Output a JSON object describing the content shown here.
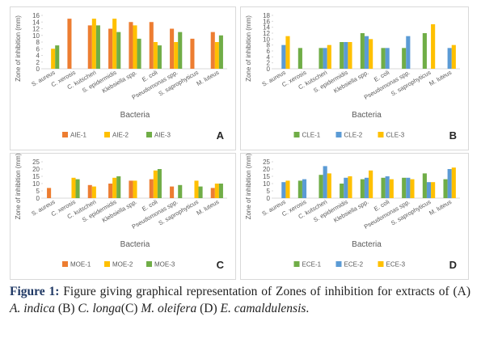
{
  "chart_data": [
    {
      "type": "bar",
      "panel": "A",
      "x_label": "Bacteria",
      "y_label": "Zone of inhibition (mm)",
      "categories": [
        "S. aureus",
        "C. xerosis",
        "C. kutscheri",
        "S. epidermidis",
        "Klebsiella spp.",
        "E. coli",
        "Pseudomonas spp.",
        "S. saprophyticus",
        "M. luteus"
      ],
      "series": [
        {
          "name": "AIE-1",
          "color": "#ed7d31",
          "values": [
            0,
            15,
            13,
            12,
            14,
            14,
            12,
            9,
            11
          ]
        },
        {
          "name": "AIE-2",
          "color": "#ffc000",
          "values": [
            6,
            0,
            15,
            15,
            13,
            8,
            8,
            0,
            8
          ]
        },
        {
          "name": "AIE-3",
          "color": "#70ad47",
          "values": [
            7,
            0,
            13,
            11,
            9,
            7,
            11,
            0,
            10
          ]
        }
      ],
      "ylim": [
        0,
        16
      ],
      "yticks": [
        0,
        2,
        4,
        6,
        8,
        10,
        12,
        14,
        16
      ]
    },
    {
      "type": "bar",
      "panel": "B",
      "x_label": "Bacteria",
      "y_label": "Zone of inhibition (mm)",
      "categories": [
        "S. aureus",
        "C. xerosis",
        "C. kutscheri",
        "S. epidermidis",
        "Klebsiella spp.",
        "E. coli",
        "Pseudomonas spp.",
        "S. saprophyticus",
        "M. luteus"
      ],
      "series": [
        {
          "name": "CLE-1",
          "color": "#70ad47",
          "values": [
            0,
            7,
            7,
            9,
            12,
            7,
            7,
            12,
            0
          ]
        },
        {
          "name": "CLE-2",
          "color": "#5b9bd5",
          "values": [
            8,
            0,
            7,
            9,
            11,
            7,
            11,
            0,
            7
          ]
        },
        {
          "name": "CLE-3",
          "color": "#ffc000",
          "values": [
            11,
            0,
            8,
            9,
            10,
            0,
            0,
            15,
            8
          ]
        }
      ],
      "ylim": [
        0,
        18
      ],
      "yticks": [
        0,
        2,
        4,
        6,
        8,
        10,
        12,
        14,
        16,
        18
      ]
    },
    {
      "type": "bar",
      "panel": "C",
      "x_label": "Bacteria",
      "y_label": "Zone of inhibition (mm)",
      "categories": [
        "S. aureus",
        "C. xerosis",
        "C. kutscheri",
        "S. epidermidis",
        "Klebsiella spp.",
        "E. coli",
        "Pseudomonas spp.",
        "S. saprophyticus",
        "M. luteus"
      ],
      "series": [
        {
          "name": "MOE-1",
          "color": "#ed7d31",
          "values": [
            7,
            0,
            9,
            10,
            12,
            13,
            8,
            0,
            7
          ]
        },
        {
          "name": "MOE-2",
          "color": "#ffc000",
          "values": [
            0,
            14,
            8,
            14,
            12,
            19,
            0,
            12,
            10
          ]
        },
        {
          "name": "MOE-3",
          "color": "#70ad47",
          "values": [
            0,
            13,
            0,
            15,
            0,
            20,
            9,
            8,
            10
          ]
        }
      ],
      "ylim": [
        0,
        25
      ],
      "yticks": [
        0,
        5,
        10,
        15,
        20,
        25
      ]
    },
    {
      "type": "bar",
      "panel": "D",
      "x_label": "Bacteria",
      "y_label": "Zone of inhibition (mm)",
      "categories": [
        "S. aureus",
        "C. xerosis",
        "C. kutscheri",
        "S. epidermidis",
        "Klebsiella spp.",
        "E. coli",
        "Pseudomonas spp.",
        "S. saprophyticus",
        "M. luteus"
      ],
      "series": [
        {
          "name": "ECE-1",
          "color": "#70ad47",
          "values": [
            0,
            12,
            16,
            10,
            13,
            14,
            14,
            17,
            13
          ]
        },
        {
          "name": "ECE-2",
          "color": "#5b9bd5",
          "values": [
            11,
            13,
            22,
            14,
            14,
            15,
            14,
            11,
            20
          ]
        },
        {
          "name": "ECE-3",
          "color": "#ffc000",
          "values": [
            12,
            0,
            17,
            15,
            19,
            13,
            13,
            11,
            21
          ]
        }
      ],
      "ylim": [
        0,
        25
      ],
      "yticks": [
        0,
        5,
        10,
        15,
        20,
        25
      ]
    }
  ],
  "caption": {
    "label": "Figure 1:",
    "parts": [
      "Figure giving graphical representation of Zones of inhibition for extracts of (A) ",
      "A. indica",
      " (B) ",
      "C. longa",
      "(C) ",
      "M. oleifera",
      " (D) ",
      "E. camaldulensis",
      "."
    ]
  }
}
